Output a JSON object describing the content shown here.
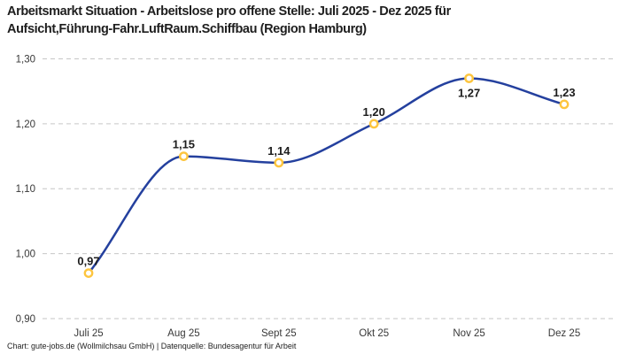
{
  "header": {
    "title_full": "Arbeitsmarkt Situation - Arbeitslose pro offene Stelle: Juli 2025 - Dez 2025 für Aufsicht,Führung-Fahr.LuftRaum.Schiffbau (Region Hamburg)",
    "title_lines": [
      "Arbeitsmarkt Situation - Arbeitslose pro offene Stelle: Juli 2025 - Dez 2025 für",
      "Aufsicht,Führung-Fahr.LuftRaum.Schiffbau (Region Hamburg)"
    ]
  },
  "footer": {
    "credit": "Chart: gute-jobs.de (Wollmilchsau GmbH) | Datenquelle: Bundesagentur für Arbeit"
  },
  "chart_data": {
    "type": "line",
    "title": "Arbeitsmarkt Situation - Arbeitslose pro offene Stelle: Juli 2025 - Dez 2025 für Aufsicht,Führung-Fahr.LuftRaum.Schiffbau (Region Hamburg)",
    "categories": [
      "Juli 25",
      "Aug 25",
      "Sept 25",
      "Okt 25",
      "Nov 25",
      "Dez 25"
    ],
    "values": [
      0.97,
      1.15,
      1.14,
      1.2,
      1.27,
      1.23
    ],
    "value_labels": [
      "0,97",
      "1,15",
      "1,14",
      "1,20",
      "1,27",
      "1,23"
    ],
    "label_placement": [
      "above",
      "above",
      "above",
      "above",
      "below",
      "above"
    ],
    "xlabel": "",
    "ylabel": "",
    "ylim": [
      0.9,
      1.3
    ],
    "ytick_step": 0.1,
    "ytick_labels": [
      "0,90",
      "1,00",
      "1,10",
      "1,20",
      "1,30"
    ],
    "grid": "dashed-horizontal",
    "legend": "none",
    "marker_style": "open-circle",
    "colors": {
      "line": "#24409e",
      "marker": "#fdc53e",
      "marker_fill": "#ffffff",
      "grid": "#c6c6c6",
      "title_text": "#1e1e1e",
      "axis_text": "#383838"
    }
  }
}
